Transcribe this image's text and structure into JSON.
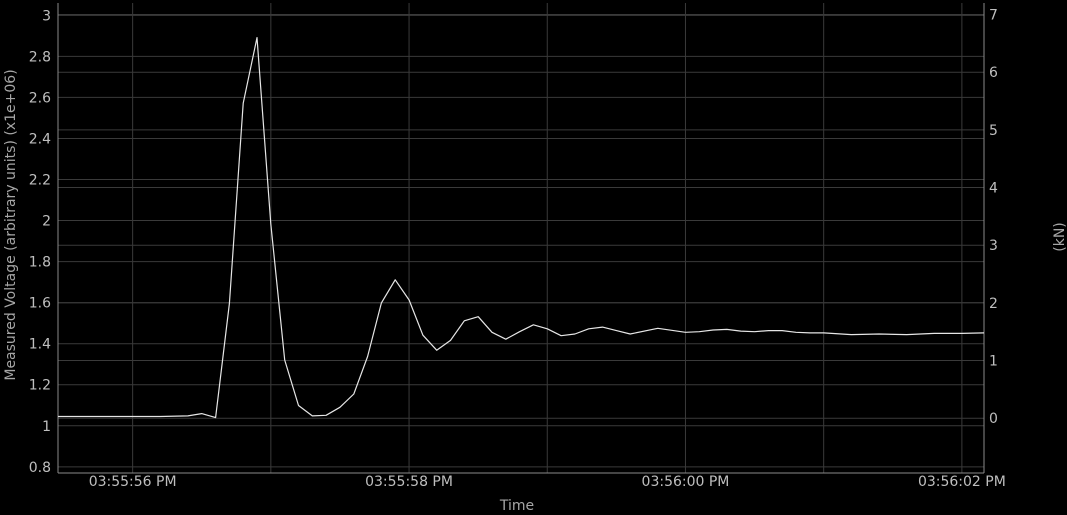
{
  "chart_data": {
    "type": "line",
    "title": "",
    "xlabel": "Time",
    "ylabel": "Measured Voltage (arbitrary units) (x1e+06)",
    "y2label": "(kN)",
    "ylim": [
      0.77,
      3.06
    ],
    "y2lim": [
      -0.95,
      7.2
    ],
    "yticks": [
      0.8,
      1,
      1.2,
      1.4,
      1.6,
      1.8,
      2,
      2.2,
      2.4,
      2.6,
      2.8,
      3
    ],
    "ytick_labels": [
      "0.8",
      "1",
      "1.2",
      "1.4",
      "1.6",
      "1.8",
      "2",
      "2.2",
      "2.4",
      "2.6",
      "2.8",
      "3"
    ],
    "y2ticks": [
      0,
      1,
      2,
      3,
      4,
      5,
      6,
      7
    ],
    "y2tick_labels": [
      "0",
      "1",
      "2",
      "3",
      "4",
      "5",
      "6",
      "7"
    ],
    "xlim": [
      -0.54,
      6.16
    ],
    "xticks": [
      0,
      2,
      4,
      6
    ],
    "xtick_labels": [
      "03:55:56 PM",
      "03:55:58 PM",
      "03:56:00 PM",
      "03:56:02 PM"
    ],
    "x_unit": "seconds after 03:55:56 PM",
    "grid": true,
    "colors": {
      "background": "#000000",
      "line": "#e6e6e6",
      "grid": "#3a3a3a",
      "axis": "#8a8a8a",
      "text": "#bfbfbf"
    },
    "series": [
      {
        "name": "",
        "axis": "y2",
        "x": [
          -0.54,
          -0.4,
          -0.2,
          0.0,
          0.2,
          0.4,
          0.5,
          0.6,
          0.7,
          0.8,
          0.9,
          1.0,
          1.1,
          1.2,
          1.3,
          1.4,
          1.5,
          1.6,
          1.7,
          1.8,
          1.9,
          2.0,
          2.1,
          2.2,
          2.3,
          2.4,
          2.5,
          2.6,
          2.7,
          2.8,
          2.9,
          3.0,
          3.1,
          3.2,
          3.3,
          3.4,
          3.5,
          3.6,
          3.8,
          4.0,
          4.1,
          4.2,
          4.3,
          4.4,
          4.5,
          4.6,
          4.7,
          4.8,
          4.9,
          5.0,
          5.2,
          5.4,
          5.6,
          5.8,
          6.0,
          6.16
        ],
        "values": [
          0.03,
          0.03,
          0.03,
          0.03,
          0.03,
          0.04,
          0.08,
          0.01,
          1.99,
          5.46,
          6.6,
          3.37,
          1.01,
          0.22,
          0.04,
          0.05,
          0.19,
          0.42,
          1.07,
          2.0,
          2.4,
          2.05,
          1.44,
          1.18,
          1.35,
          1.69,
          1.76,
          1.49,
          1.37,
          1.5,
          1.62,
          1.55,
          1.43,
          1.46,
          1.55,
          1.58,
          1.52,
          1.46,
          1.56,
          1.49,
          1.5,
          1.53,
          1.54,
          1.51,
          1.5,
          1.52,
          1.52,
          1.49,
          1.48,
          1.48,
          1.45,
          1.46,
          1.45,
          1.47,
          1.47,
          1.48
        ]
      }
    ]
  }
}
